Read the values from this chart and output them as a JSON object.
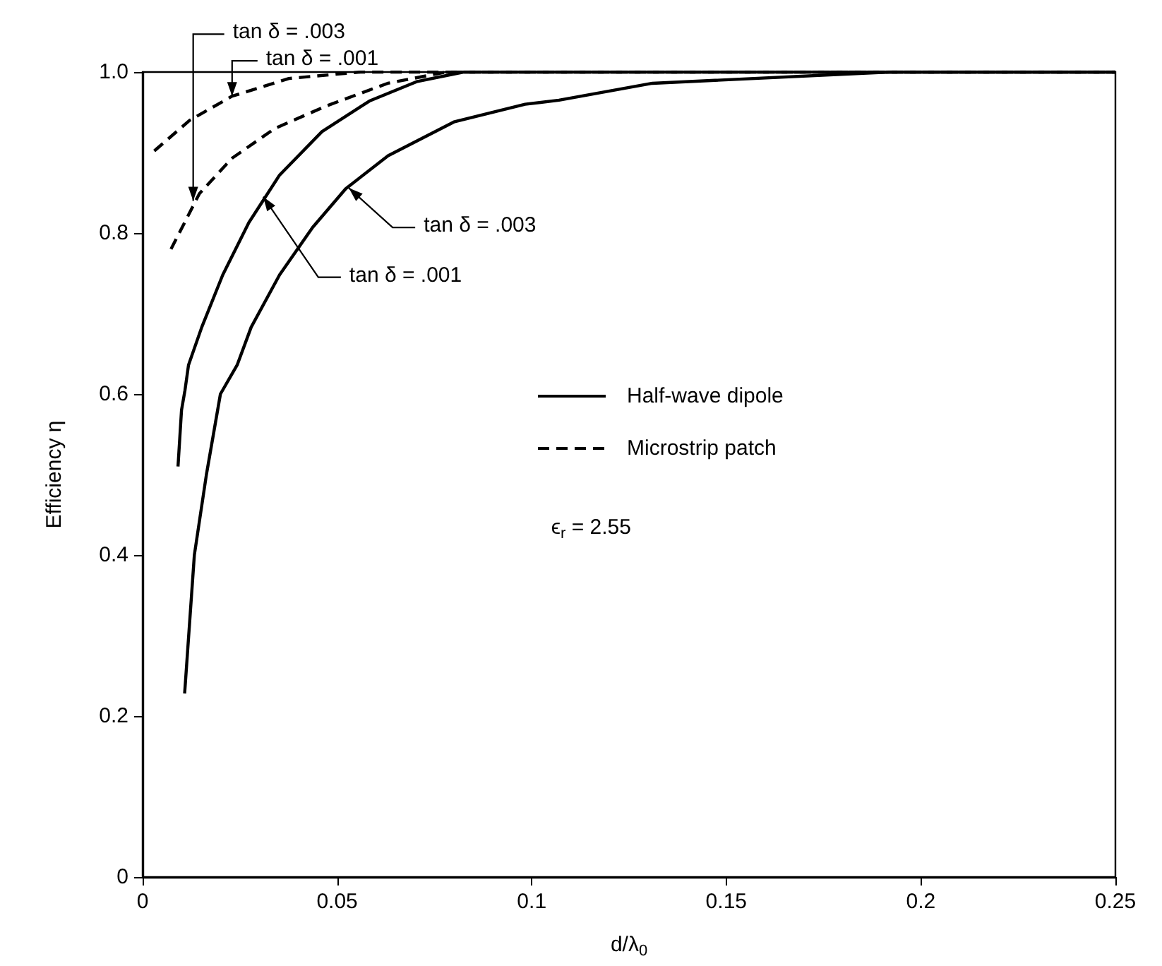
{
  "chart_data": {
    "type": "line",
    "xlabel": "d/λ$_{0}$",
    "ylabel": "Efficiency η",
    "xlim": [
      0,
      0.25
    ],
    "xticks": [
      0,
      0.05,
      0.1,
      0.15,
      0.2,
      0.25
    ],
    "ylim": [
      0,
      1
    ],
    "yticks": [
      0,
      0.2,
      0.4,
      0.6,
      0.8,
      {
        "value": 1,
        "label": "1.0"
      }
    ],
    "grid": false,
    "legend": "right",
    "marker": "none",
    "series": [
      {
        "name": "Half-wave dipole",
        "color": "#000000",
        "line_style": "solid",
        "x": [
          0.0091,
          0.01,
          0.0109,
          0.0118,
          0.0152,
          0.0206,
          0.0273,
          0.0352,
          0.0461,
          0.0583,
          0.0704,
          0.0825,
          0.25
        ],
        "values": [
          0.51,
          0.58,
          0.605,
          0.636,
          0.683,
          0.748,
          0.813,
          0.872,
          0.926,
          0.964,
          0.988,
          1.0,
          1.0
        ]
      },
      {
        "color": "#000000",
        "line_style": "solid",
        "x": [
          0.0108,
          0.0133,
          0.0164,
          0.02,
          0.0243,
          0.0279,
          0.0352,
          0.0437,
          0.0522,
          0.0631,
          0.08,
          0.0983,
          0.107,
          0.131,
          0.192,
          0.25
        ],
        "values": [
          0.228,
          0.4,
          0.5,
          0.6,
          0.636,
          0.683,
          0.748,
          0.807,
          0.855,
          0.896,
          0.938,
          0.96,
          0.965,
          0.986,
          1.0,
          1.0
        ]
      },
      {
        "name": "Microstrip patch",
        "color": "#000000",
        "line_style": "dashed",
        "x": [
          0.003,
          0.0121,
          0.023,
          0.0376,
          0.056,
          0.25
        ],
        "values": [
          0.902,
          0.94,
          0.97,
          0.992,
          1.0,
          1.0
        ]
      },
      {
        "color": "#000000",
        "line_style": "dashed",
        "x": [
          0.0073,
          0.0146,
          0.023,
          0.034,
          0.0473,
          0.063,
          0.078,
          0.25
        ],
        "values": [
          0.78,
          0.849,
          0.893,
          0.93,
          0.958,
          0.986,
          1.0,
          1.0
        ]
      }
    ],
    "annotations": [
      {
        "text": "tan δ = .003",
        "x": 0.013,
        "y": 0.84
      },
      {
        "text": "tan δ = .001",
        "x": 0.023,
        "y": 0.97
      },
      {
        "text": "tan δ = .003",
        "x": 0.053,
        "y": 0.856
      },
      {
        "text": "tan δ = .001",
        "x": 0.031,
        "y": 0.845
      },
      "ϵ$_{r}$ = 2.55"
    ]
  }
}
